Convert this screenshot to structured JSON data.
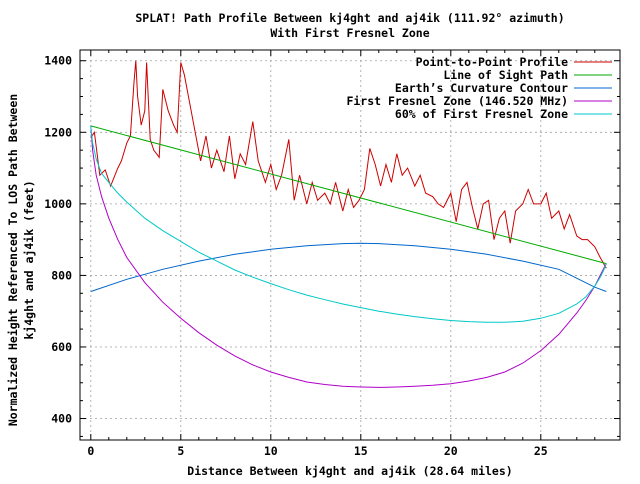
{
  "chart_data": {
    "type": "line",
    "title_line1": "SPLAT! Path Profile Between kj4ght and aj4ik (111.92° azimuth)",
    "title_line2": "With First Fresnel Zone",
    "xlabel": "Distance Between kj4ght and aj4ik (28.64 miles)",
    "ylabel_line1": "Normalized Height Referenced To LOS Path Between",
    "ylabel_line2": "kj4ght and aj4ik (feet)",
    "xlim": [
      -0.6,
      29.4
    ],
    "ylim": [
      340,
      1430
    ],
    "xticks": [
      0,
      5,
      10,
      15,
      20,
      25
    ],
    "yticks": [
      400,
      600,
      800,
      1000,
      1200,
      1400
    ],
    "grid": true,
    "legend_position": "top-right",
    "colors": {
      "profile": "#cc0000",
      "los": "#00aa00",
      "curvature": "#0066cc",
      "fresnel": "#b000c8",
      "fresnel60": "#00c8c8"
    },
    "series": [
      {
        "name": "Point-to-Point Profile",
        "key": "profile",
        "x": [
          0,
          0.2,
          0.5,
          0.8,
          1.1,
          1.5,
          1.7,
          2.0,
          2.2,
          2.4,
          2.5,
          2.6,
          2.8,
          3.0,
          3.1,
          3.3,
          3.5,
          3.8,
          4.0,
          4.3,
          4.6,
          4.8,
          5.0,
          5.2,
          5.5,
          5.8,
          6.1,
          6.4,
          6.7,
          7.0,
          7.4,
          7.7,
          8.0,
          8.3,
          8.6,
          9.0,
          9.3,
          9.7,
          10.0,
          10.3,
          10.6,
          11.0,
          11.3,
          11.6,
          12.0,
          12.3,
          12.6,
          13.0,
          13.3,
          13.6,
          14.0,
          14.3,
          14.6,
          14.9,
          15.2,
          15.5,
          15.8,
          16.1,
          16.4,
          16.7,
          17.0,
          17.3,
          17.6,
          18.0,
          18.3,
          18.6,
          19.0,
          19.3,
          19.6,
          20.0,
          20.3,
          20.6,
          20.9,
          21.2,
          21.5,
          21.8,
          22.1,
          22.4,
          22.7,
          23.0,
          23.3,
          23.6,
          24.0,
          24.3,
          24.6,
          25.0,
          25.3,
          25.6,
          26.0,
          26.3,
          26.6,
          27.0,
          27.3,
          27.6,
          28.0,
          28.3,
          28.64
        ],
        "values": [
          1185,
          1200,
          1080,
          1095,
          1050,
          1100,
          1120,
          1170,
          1190,
          1340,
          1400,
          1300,
          1220,
          1260,
          1395,
          1180,
          1150,
          1130,
          1320,
          1260,
          1220,
          1200,
          1395,
          1360,
          1280,
          1200,
          1120,
          1190,
          1100,
          1150,
          1090,
          1190,
          1070,
          1140,
          1110,
          1230,
          1120,
          1060,
          1110,
          1040,
          1080,
          1180,
          1010,
          1080,
          1000,
          1060,
          1010,
          1030,
          1000,
          1060,
          980,
          1040,
          990,
          1010,
          1040,
          1155,
          1110,
          1050,
          1110,
          1060,
          1140,
          1080,
          1100,
          1050,
          1080,
          1030,
          1020,
          1000,
          990,
          1030,
          950,
          1040,
          1060,
          990,
          930,
          1000,
          1010,
          900,
          960,
          980,
          890,
          980,
          1000,
          1040,
          1000,
          1000,
          1030,
          960,
          980,
          930,
          970,
          910,
          900,
          900,
          880,
          850,
          820
        ]
      },
      {
        "name": "Line of Sight Path",
        "key": "los",
        "x": [
          0,
          28.64
        ],
        "values": [
          1218,
          833
        ]
      },
      {
        "name": "Earth’s Curvature Contour",
        "key": "curvature",
        "x": [
          0,
          2,
          4,
          6,
          8,
          10,
          12,
          14,
          15,
          16,
          18,
          20,
          22,
          24,
          26,
          28,
          28.64
        ],
        "values": [
          755,
          789,
          817,
          840,
          859,
          873,
          883,
          889,
          890,
          889,
          883,
          873,
          859,
          840,
          817,
          767,
          755
        ]
      },
      {
        "name": "First Fresnel Zone (146.520 MHz)",
        "key": "fresnel",
        "x": [
          0,
          0.1,
          0.3,
          0.6,
          1.0,
          1.5,
          2.0,
          3.0,
          4.0,
          5.0,
          6.0,
          7.0,
          8.0,
          9.0,
          10.0,
          11.0,
          12.0,
          13.0,
          14.0,
          15.0,
          16.0,
          17.0,
          18.0,
          19.0,
          20.0,
          21.0,
          22.0,
          23.0,
          24.0,
          25.0,
          26.0,
          27.0,
          27.5,
          28.0,
          28.3,
          28.5,
          28.64
        ],
        "values": [
          1218,
          1150,
          1080,
          1020,
          960,
          900,
          850,
          780,
          725,
          680,
          640,
          605,
          575,
          550,
          530,
          515,
          502,
          495,
          490,
          488,
          487,
          488,
          490,
          493,
          497,
          505,
          515,
          530,
          555,
          590,
          635,
          695,
          730,
          770,
          800,
          820,
          833
        ]
      },
      {
        "name": "60% of First Fresnel Zone",
        "key": "fresnel60",
        "x": [
          0,
          0.1,
          0.3,
          0.6,
          1.0,
          1.5,
          2.0,
          3.0,
          4.0,
          5.0,
          6.0,
          7.0,
          8.0,
          9.0,
          10.0,
          11.0,
          12.0,
          13.0,
          14.0,
          15.0,
          16.0,
          17.0,
          18.0,
          19.0,
          20.0,
          21.0,
          22.0,
          23.0,
          24.0,
          25.0,
          26.0,
          27.0,
          27.5,
          28.0,
          28.3,
          28.5,
          28.64
        ],
        "values": [
          1218,
          1170,
          1125,
          1085,
          1060,
          1030,
          1005,
          960,
          925,
          895,
          865,
          840,
          815,
          795,
          777,
          760,
          745,
          732,
          720,
          710,
          700,
          692,
          685,
          679,
          674,
          671,
          669,
          669,
          672,
          680,
          694,
          720,
          740,
          770,
          795,
          815,
          833
        ]
      }
    ]
  }
}
